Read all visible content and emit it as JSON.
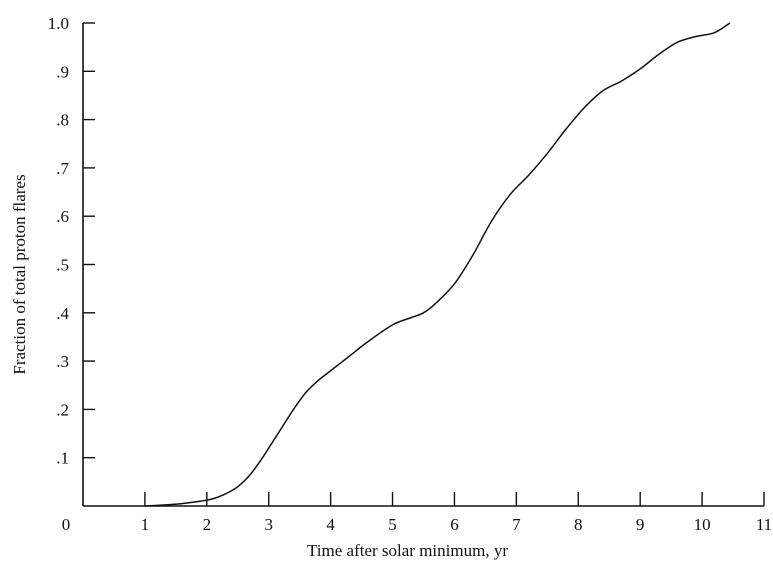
{
  "chart_data": {
    "type": "line",
    "title": "",
    "xlabel": "Time after solar minimum, yr",
    "ylabel": "Fraction of total proton flares",
    "xlim": [
      0,
      11
    ],
    "ylim": [
      0,
      1.0
    ],
    "grid": false,
    "legend": "none",
    "x_ticks": [
      {
        "value": 0,
        "label": "0"
      },
      {
        "value": 1,
        "label": "1"
      },
      {
        "value": 2,
        "label": "2"
      },
      {
        "value": 3,
        "label": "3"
      },
      {
        "value": 4,
        "label": "4"
      },
      {
        "value": 5,
        "label": "5"
      },
      {
        "value": 6,
        "label": "6"
      },
      {
        "value": 7,
        "label": "7"
      },
      {
        "value": 8,
        "label": "8"
      },
      {
        "value": 9,
        "label": "9"
      },
      {
        "value": 10,
        "label": "10"
      },
      {
        "value": 11,
        "label": "11"
      }
    ],
    "y_ticks": [
      {
        "value": 0.1,
        "label": ".1"
      },
      {
        "value": 0.2,
        "label": ".2"
      },
      {
        "value": 0.3,
        "label": ".3"
      },
      {
        "value": 0.4,
        "label": ".4"
      },
      {
        "value": 0.5,
        "label": ".5"
      },
      {
        "value": 0.6,
        "label": ".6"
      },
      {
        "value": 0.7,
        "label": ".7"
      },
      {
        "value": 0.8,
        "label": ".8"
      },
      {
        "value": 0.9,
        "label": ".9"
      },
      {
        "value": 1.0,
        "label": "1.0"
      }
    ],
    "series": [
      {
        "x": [
          1.0,
          1.3,
          1.6,
          1.9,
          2.1,
          2.3,
          2.5,
          2.7,
          2.9,
          3.0,
          3.2,
          3.4,
          3.6,
          3.8,
          4.0,
          4.3,
          4.6,
          5.0,
          5.3,
          5.5,
          5.7,
          6.0,
          6.3,
          6.6,
          6.9,
          7.2,
          7.5,
          7.8,
          8.1,
          8.4,
          8.7,
          9.0,
          9.3,
          9.6,
          9.9,
          10.2,
          10.45
        ],
        "y": [
          0.0,
          0.002,
          0.005,
          0.01,
          0.015,
          0.025,
          0.04,
          0.065,
          0.1,
          0.12,
          0.16,
          0.2,
          0.235,
          0.26,
          0.28,
          0.31,
          0.34,
          0.375,
          0.39,
          0.4,
          0.42,
          0.46,
          0.52,
          0.59,
          0.645,
          0.685,
          0.73,
          0.78,
          0.825,
          0.86,
          0.88,
          0.905,
          0.935,
          0.96,
          0.972,
          0.98,
          1.0
        ],
        "color": "#111111"
      }
    ]
  }
}
